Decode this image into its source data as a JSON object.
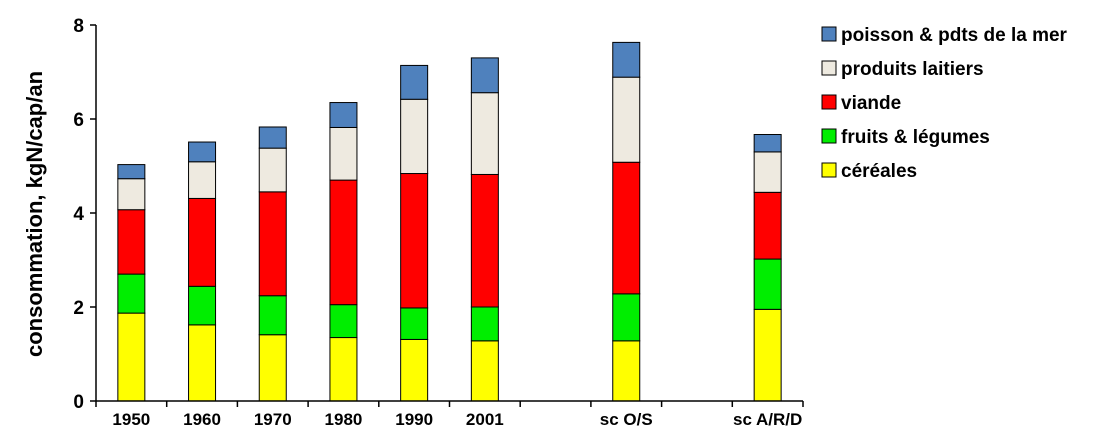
{
  "chart_data": {
    "type": "bar",
    "stacked": true,
    "categories": [
      "1950",
      "1960",
      "1970",
      "1980",
      "1990",
      "2001",
      "",
      "sc O/S",
      "",
      "sc A/R/D"
    ],
    "ylabel": "consommation, kgN/cap/an",
    "xlabel": "",
    "ylim": [
      0,
      8
    ],
    "yticks": [
      "0",
      "2",
      "4",
      "6",
      "8"
    ],
    "grid": false,
    "legend_position": "right",
    "series": [
      {
        "name": "céréales",
        "color": "#ffff00",
        "values": [
          1.87,
          1.62,
          1.41,
          1.35,
          1.31,
          1.28,
          null,
          1.28,
          null,
          1.95
        ]
      },
      {
        "name": "fruits & légumes",
        "color": "#00ee00",
        "values": [
          0.83,
          0.82,
          0.83,
          0.7,
          0.67,
          0.72,
          null,
          1.0,
          null,
          1.07
        ]
      },
      {
        "name": "viande",
        "color": "#ff0000",
        "values": [
          1.37,
          1.87,
          2.21,
          2.65,
          2.86,
          2.82,
          null,
          2.8,
          null,
          1.42
        ]
      },
      {
        "name": "produits laitiers",
        "color": "#eeeae0",
        "values": [
          0.66,
          0.78,
          0.93,
          1.12,
          1.58,
          1.74,
          null,
          1.81,
          null,
          0.86
        ]
      },
      {
        "name": "poisson & pdts de la mer",
        "color": "#4f81bd",
        "values": [
          0.3,
          0.42,
          0.45,
          0.53,
          0.72,
          0.74,
          null,
          0.74,
          null,
          0.37
        ]
      }
    ]
  }
}
